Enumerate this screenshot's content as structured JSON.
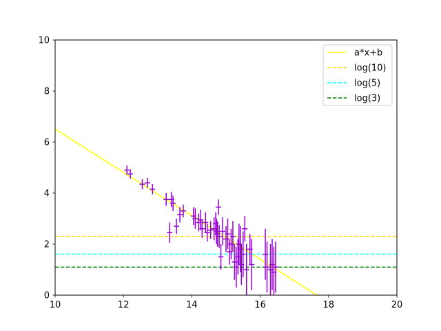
{
  "chart_data": {
    "type": "scatter",
    "title": "",
    "xlabel": "",
    "ylabel": "",
    "xlim": [
      10,
      20
    ],
    "ylim": [
      0,
      10
    ],
    "x_ticks": [
      "10",
      "12",
      "14",
      "16",
      "18",
      "20"
    ],
    "y_ticks": [
      "0",
      "2",
      "4",
      "6",
      "8",
      "10"
    ],
    "grid": false,
    "legend_position": "top-right",
    "series": [
      {
        "name": "a*x+b",
        "kind": "line",
        "color": "#ffff00",
        "style": "solid",
        "x": [
          10,
          17.66
        ],
        "y": [
          6.51,
          0
        ]
      },
      {
        "name": "log(10)",
        "kind": "hline",
        "color": "#ffd700",
        "style": "dashed",
        "y": 2.303
      },
      {
        "name": "log(5)",
        "kind": "hline",
        "color": "#00ffff",
        "style": "dashed",
        "y": 1.609
      },
      {
        "name": "log(3)",
        "kind": "hline",
        "color": "#008000",
        "style": "dashed",
        "y": 1.099
      }
    ],
    "points": {
      "color": "#9400d3",
      "x": [
        12.1,
        12.2,
        12.55,
        12.7,
        12.85,
        13.25,
        13.35,
        13.4,
        13.45,
        13.55,
        13.65,
        13.75,
        14.05,
        14.1,
        14.2,
        14.25,
        14.3,
        14.4,
        14.45,
        14.55,
        14.65,
        14.7,
        14.72,
        14.75,
        14.78,
        14.8,
        14.85,
        14.9,
        15.0,
        15.05,
        15.1,
        15.15,
        15.2,
        15.25,
        15.3,
        15.35,
        15.38,
        15.42,
        15.45,
        15.5,
        15.55,
        15.6,
        15.7,
        15.75,
        16.15,
        16.2,
        16.3,
        16.35,
        16.4,
        16.45
      ],
      "y": [
        4.9,
        4.75,
        4.35,
        4.4,
        4.15,
        3.75,
        2.45,
        3.75,
        3.6,
        2.7,
        3.15,
        3.3,
        3.1,
        3.0,
        2.85,
        2.95,
        2.6,
        2.85,
        2.45,
        2.55,
        2.6,
        2.8,
        2.5,
        2.4,
        3.45,
        2.3,
        1.5,
        2.5,
        2.2,
        2.4,
        1.7,
        2.0,
        2.3,
        1.3,
        1.1,
        1.5,
        2.0,
        1.8,
        1.2,
        1.6,
        2.6,
        1.0,
        1.8,
        1.2,
        1.6,
        1.1,
        1.0,
        1.2,
        0.9,
        1.1
      ],
      "xerr": [
        0.08,
        0.08,
        0.08,
        0.08,
        0.08,
        0.08,
        0.08,
        0.08,
        0.08,
        0.08,
        0.08,
        0.08,
        0.08,
        0.08,
        0.08,
        0.08,
        0.08,
        0.08,
        0.08,
        0.08,
        0.08,
        0.08,
        0.08,
        0.08,
        0.08,
        0.08,
        0.08,
        0.08,
        0.08,
        0.08,
        0.08,
        0.08,
        0.08,
        0.08,
        0.08,
        0.08,
        0.08,
        0.08,
        0.08,
        0.08,
        0.08,
        0.08,
        0.08,
        0.08,
        0.08,
        0.08,
        0.08,
        0.08,
        0.08,
        0.08
      ],
      "yerr": [
        0.18,
        0.18,
        0.2,
        0.2,
        0.2,
        0.25,
        0.4,
        0.3,
        0.3,
        0.3,
        0.3,
        0.25,
        0.35,
        0.4,
        0.35,
        0.4,
        0.35,
        0.4,
        0.35,
        0.35,
        0.45,
        0.45,
        0.5,
        0.5,
        0.3,
        0.45,
        0.5,
        0.55,
        0.5,
        0.6,
        0.5,
        0.6,
        0.6,
        0.7,
        0.8,
        0.7,
        0.8,
        0.9,
        0.8,
        0.9,
        0.5,
        1.0,
        0.6,
        1.0,
        1.0,
        1.0,
        1.0,
        1.0,
        1.0,
        1.0
      ]
    }
  }
}
